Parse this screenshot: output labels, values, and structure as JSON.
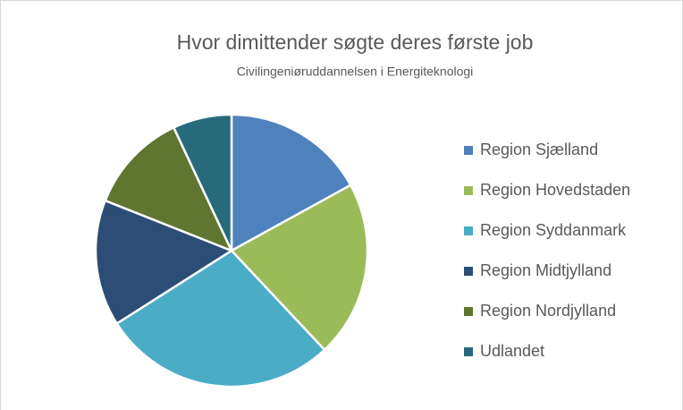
{
  "chart_data": {
    "type": "pie",
    "title": "Hvor dimittender søgte deres første job",
    "subtitle": "Civilingeniøruddannelsen i Energiteknologi",
    "categories": [
      "Region Sjælland",
      "Region Hovedstaden",
      "Region Syddanmark",
      "Region Midtjylland",
      "Region Nordjylland",
      "Udlandet"
    ],
    "values": [
      17,
      21,
      28,
      15,
      12,
      7
    ],
    "colors": [
      "#4f81bd",
      "#9bbb59",
      "#4bacc6",
      "#2c4d75",
      "#5f7530",
      "#276a7c"
    ],
    "legend": "right"
  }
}
